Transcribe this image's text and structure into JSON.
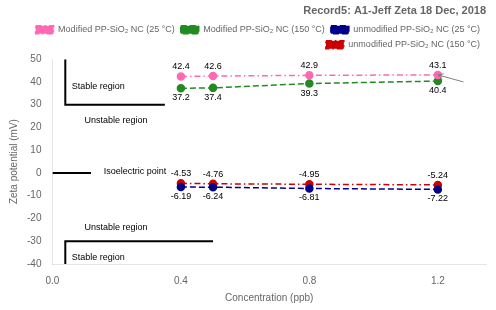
{
  "chart_data": {
    "type": "line",
    "title": "Record5: A1-Jeff Zeta 18 Dec, 2018",
    "xlabel": "Concentration (ppb)",
    "ylabel": "Zeta potential (mV)",
    "x": [
      0.4,
      0.5,
      0.8,
      1.2
    ],
    "series": [
      {
        "name": "Modified PP-SiO₂ NC (25 °C)",
        "color": "#ff69b4",
        "marker": "circle",
        "line_style": "dashdot",
        "values": [
          42.4,
          42.6,
          42.9,
          43.1
        ]
      },
      {
        "name": "Modified PP-SiO₂ NC (150 °C)",
        "color": "#228B22",
        "marker": "circle",
        "line_style": "dashed",
        "values": [
          37.2,
          37.4,
          39.3,
          40.4
        ]
      },
      {
        "name": "unmodified PP-SiO₂ NC (25 °C)",
        "color": "#00008B",
        "marker": "circle",
        "line_style": "dashed",
        "values": [
          -6.19,
          -6.24,
          -6.81,
          -7.22
        ]
      },
      {
        "name": "unmodified PP-SiO₂ NC (150 °C)",
        "color": "#cc0000",
        "marker": "circle",
        "line_style": "dashdot",
        "values": [
          -4.53,
          -4.76,
          -4.95,
          -5.24
        ]
      }
    ],
    "xlim": [
      0,
      1.35
    ],
    "ylim": [
      -40,
      50
    ],
    "xticks": [
      {
        "value": 0,
        "label": "0.0"
      },
      0.4,
      0.8,
      1.2
    ],
    "yticks": [
      -40,
      -30,
      -20,
      -10,
      0,
      10,
      20,
      30,
      40,
      50
    ],
    "grid": false,
    "legend": "upper right",
    "data_labels": true,
    "annotations": [
      {
        "text": "Stable region",
        "x": 0.06,
        "y": 38
      },
      {
        "text": "Unstable region",
        "x": 0.1,
        "y": 23
      },
      {
        "text": "Isoelectric point",
        "x": 0.16,
        "y": 0.5
      },
      {
        "text": "Unstable region",
        "x": 0.1,
        "y": -24
      },
      {
        "text": "Stable region",
        "x": 0.06,
        "y": -37
      }
    ],
    "shapes": [
      {
        "x": [
          0.04,
          0.04,
          0.35
        ],
        "y": [
          50,
          30,
          30
        ],
        "color": "#000000"
      },
      {
        "x": [
          0.04,
          0.04,
          0.5
        ],
        "y": [
          -40,
          -30,
          -30
        ],
        "color": "#000000"
      },
      {
        "x": [
          0.0,
          0.12
        ],
        "y": [
          0,
          0
        ],
        "color": "#000000"
      }
    ],
    "arrows": [
      {
        "from": [
          1.28,
          40
        ],
        "to": [
          1.2,
          43.1
        ],
        "color": "gray"
      }
    ]
  }
}
